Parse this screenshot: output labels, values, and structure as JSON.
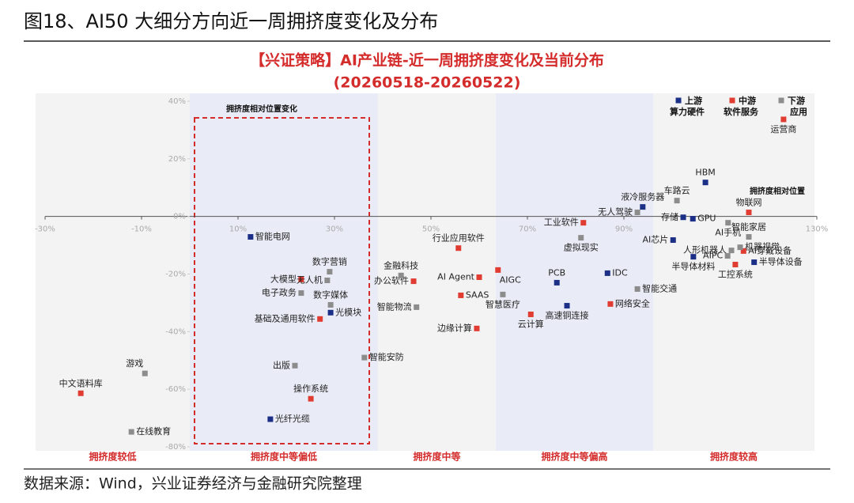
{
  "header": {
    "title": "图18、AI50 大细分方向近一周拥挤度变化及分布"
  },
  "chart_data": {
    "type": "scatter",
    "title": "【兴证策略】AI产业链-近一周拥挤度变化及当前分布",
    "subtitle": "(20260518-20260522)",
    "xlim": [
      -30,
      130
    ],
    "ylim": [
      -80,
      40
    ],
    "xticks": [
      {
        "value": -30,
        "label": "-30%"
      },
      {
        "value": -10,
        "label": "-10%"
      },
      {
        "value": 10,
        "label": "10%"
      },
      {
        "value": 30,
        "label": "30%"
      },
      {
        "value": 50,
        "label": "50%"
      },
      {
        "value": 70,
        "label": "70%"
      },
      {
        "value": 90,
        "label": "90%"
      },
      {
        "value": 130,
        "label": "130%"
      }
    ],
    "yticks": [
      {
        "value": 40,
        "label": "40%"
      },
      {
        "value": 20,
        "label": "20%"
      },
      {
        "value": 0,
        "label": "0%"
      },
      {
        "value": -20,
        "label": "-20%"
      },
      {
        "value": -40,
        "label": "-40%"
      },
      {
        "value": -60,
        "label": "-60%"
      },
      {
        "value": -80,
        "label": "-80%"
      }
    ],
    "bands": [
      "拥挤度较低",
      "拥挤度中等偏低",
      "拥挤度中等",
      "拥挤度中等偏高",
      "拥挤度较高"
    ],
    "annotations": [
      "拥挤度相对位置变化",
      "拥挤度相对位置"
    ],
    "series": [
      {
        "name": "上游",
        "sublabel": "算力硬件",
        "color": "#1b2f86",
        "labels": [
          "智能电网",
          "光模块",
          "光纤光缆",
          "PCB",
          "IDC",
          "高速铜连接",
          "液冷服务器",
          "HBM",
          "存储",
          "GPU",
          "AI芯片",
          "半导体材料",
          "半导体设备"
        ],
        "x": [
          12.6,
          29.2,
          16.7,
          76.1,
          86.6,
          78.2,
          93.9,
          106.9,
          102.3,
          104.3,
          100.2,
          104.4,
          117.0
        ],
        "values": [
          -7.1,
          -33.4,
          -70.4,
          -23.0,
          -19.7,
          -31.0,
          3.3,
          11.8,
          -0.3,
          -0.8,
          -8.2,
          -14.0,
          -15.9
        ]
      },
      {
        "name": "中游",
        "sublabel": "软件服务",
        "color": "#e03c31",
        "labels": [
          "中文语料库",
          "大模型",
          "基础及通用软件",
          "操作系统",
          "行业应用软件",
          "办公软件",
          "AI Agent",
          "SAAS",
          "边缘计算",
          "AIGC",
          "云计算",
          "网络安全",
          "工业软件",
          "运营商",
          "物联网",
          "AI穿戴设备",
          "工控系统"
        ],
        "x": [
          -22.6,
          23.1,
          27.0,
          25.1,
          55.7,
          46.4,
          60.0,
          56.2,
          59.5,
          63.9,
          70.7,
          87.2,
          81.6,
          123.1,
          115.9,
          114.8,
          113.1
        ],
        "values": [
          -61.4,
          -21.9,
          -35.6,
          -63.3,
          -11.0,
          -22.5,
          -21.1,
          -27.4,
          -38.9,
          -18.6,
          -34.0,
          -30.4,
          -2.2,
          33.7,
          1.4,
          -12.0,
          -16.7
        ]
      },
      {
        "name": "下游",
        "sublabel": "应用",
        "color": "#8c8c8c",
        "labels": [
          "游戏",
          "在线教育",
          "数字营销",
          "无人机",
          "电子政务",
          "数字媒体",
          "出版",
          "智能安防",
          "金融科技",
          "智能物流",
          "智慧医疗",
          "虚拟现实",
          "智能交通",
          "无人驾驶",
          "车路云",
          "智能家居",
          "AI手机",
          "人形机器人",
          "机器视觉",
          "AIPC"
        ],
        "x": [
          -9.3,
          -12.1,
          29.0,
          28.5,
          23.1,
          29.2,
          21.8,
          36.2,
          43.8,
          47.0,
          64.9,
          81.1,
          92.8,
          92.8,
          101.0,
          115.9,
          111.6,
          112.3,
          114.1,
          111.5
        ],
        "values": [
          -54.5,
          -74.8,
          -19.2,
          -22.2,
          -26.6,
          -30.7,
          -51.8,
          -49.0,
          -20.5,
          -31.5,
          -27.1,
          -7.4,
          -25.2,
          1.4,
          5.5,
          -7.1,
          -2.2,
          -11.8,
          -10.7,
          -13.7
        ]
      }
    ]
  },
  "footer": {
    "source": "数据来源：Wind，兴业证券经济与金融研究院整理"
  }
}
